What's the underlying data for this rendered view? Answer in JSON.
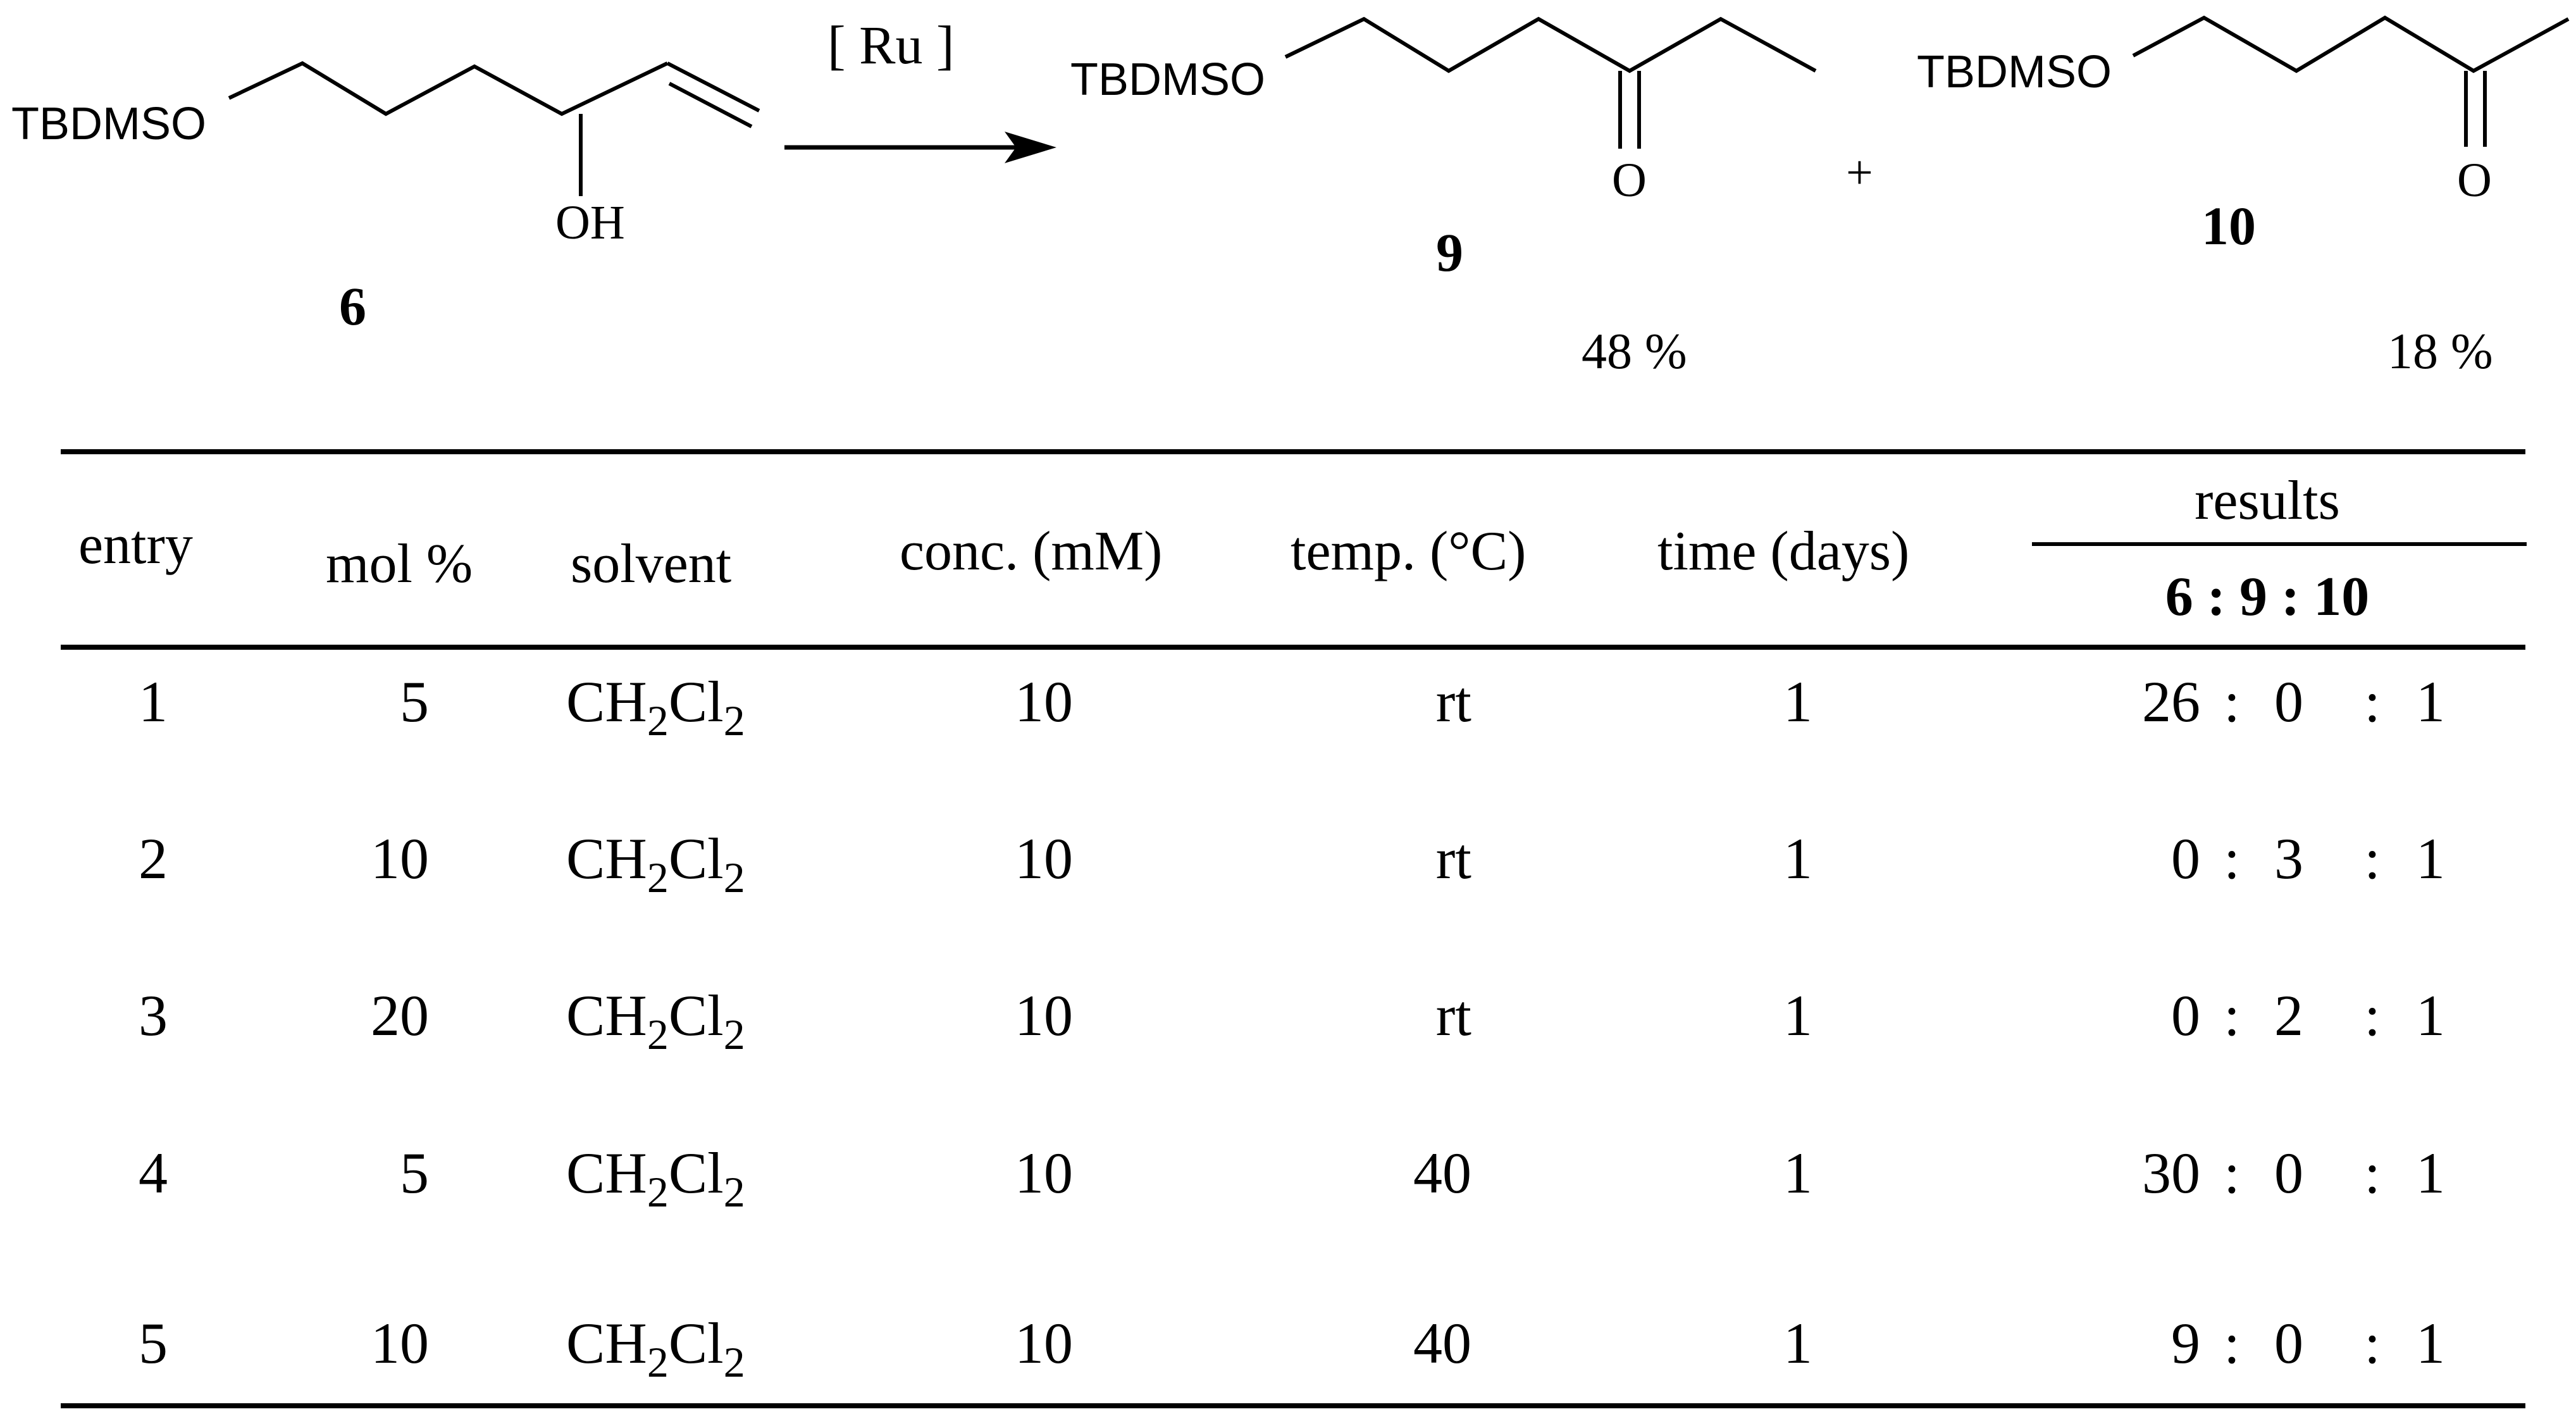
{
  "scheme": {
    "reagent": "[ Ru ]",
    "plus": "+",
    "starting_material": {
      "group": "TBDMSO",
      "hydroxyl": "OH",
      "label": "6"
    },
    "product_9": {
      "group": "TBDMSO",
      "carbonyl_o": "O",
      "label": "9",
      "yield": "48 %"
    },
    "product_10": {
      "group": "TBDMSO",
      "carbonyl_o": "O",
      "label": "10",
      "yield": "18 %"
    }
  },
  "table": {
    "headers": {
      "entry": "entry",
      "mol": "mol %",
      "solvent": "solvent",
      "conc": "conc. (mM)",
      "temp": "temp. (°C)",
      "time": "time (days)",
      "results": "results",
      "ratio": "6 : 9 : 10"
    },
    "rows": [
      {
        "entry": "1",
        "mol": "5",
        "solvent": {
          "a": "CH",
          "b": "2",
          "c": "Cl",
          "d": "2"
        },
        "conc": "10",
        "temp": "rt",
        "time": "1",
        "r6": "26",
        "r9": "0",
        "r10": "1"
      },
      {
        "entry": "2",
        "mol": "10",
        "solvent": {
          "a": "CH",
          "b": "2",
          "c": "Cl",
          "d": "2"
        },
        "conc": "10",
        "temp": "rt",
        "time": "1",
        "r6": "0",
        "r9": "3",
        "r10": "1"
      },
      {
        "entry": "3",
        "mol": "20",
        "solvent": {
          "a": "CH",
          "b": "2",
          "c": "Cl",
          "d": "2"
        },
        "conc": "10",
        "temp": "rt",
        "time": "1",
        "r6": "0",
        "r9": "2",
        "r10": "1"
      },
      {
        "entry": "4",
        "mol": "5",
        "solvent": {
          "a": "CH",
          "b": "2",
          "c": "Cl",
          "d": "2"
        },
        "conc": "10",
        "temp": "40",
        "time": "1",
        "r6": "30",
        "r9": "0",
        "r10": "1"
      },
      {
        "entry": "5",
        "mol": "10",
        "solvent": {
          "a": "CH",
          "b": "2",
          "c": "Cl",
          "d": "2"
        },
        "conc": "10",
        "temp": "40",
        "time": "1",
        "r6": "9",
        "r9": "0",
        "r10": "1"
      }
    ],
    "separator": ":"
  }
}
